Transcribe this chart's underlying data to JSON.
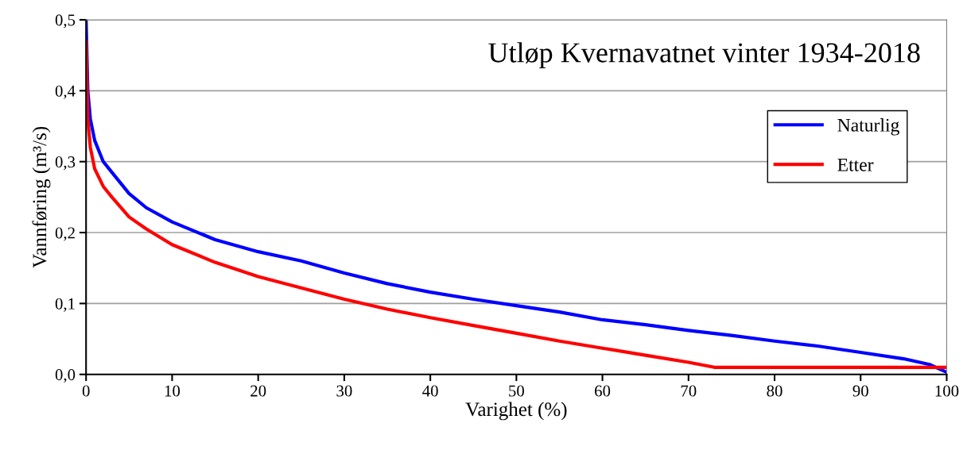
{
  "chart_data": {
    "type": "line",
    "title": "Utløp Kvernavatnet vinter 1934-2018",
    "xlabel": "Varighet (%)",
    "ylabel": "Vannføring (m³/s)",
    "series": [
      {
        "name": "Naturlig",
        "color": "#0000ff",
        "x": [
          0,
          0.2,
          0.5,
          1,
          2,
          3,
          5,
          7,
          10,
          15,
          20,
          25,
          30,
          35,
          40,
          45,
          50,
          55,
          60,
          65,
          70,
          75,
          80,
          85,
          90,
          95,
          98,
          100
        ],
        "values": [
          0.5,
          0.4,
          0.36,
          0.33,
          0.3,
          0.285,
          0.255,
          0.235,
          0.215,
          0.19,
          0.173,
          0.16,
          0.143,
          0.128,
          0.116,
          0.106,
          0.097,
          0.088,
          0.077,
          0.07,
          0.062,
          0.055,
          0.047,
          0.04,
          0.031,
          0.022,
          0.014,
          0.003
        ]
      },
      {
        "name": "Etter",
        "color": "#ff0000",
        "x": [
          0,
          0.2,
          0.5,
          1,
          2,
          3,
          5,
          7,
          10,
          15,
          20,
          25,
          30,
          35,
          40,
          45,
          50,
          55,
          60,
          65,
          70,
          73,
          80,
          90,
          100
        ],
        "values": [
          0.47,
          0.36,
          0.32,
          0.29,
          0.265,
          0.25,
          0.222,
          0.205,
          0.183,
          0.158,
          0.138,
          0.122,
          0.106,
          0.092,
          0.08,
          0.069,
          0.058,
          0.047,
          0.037,
          0.027,
          0.017,
          0.01,
          0.01,
          0.01,
          0.01
        ]
      }
    ],
    "xlim": [
      0,
      100
    ],
    "xticks": [
      0,
      10,
      20,
      30,
      40,
      50,
      60,
      70,
      80,
      90,
      100
    ],
    "ylim": [
      0,
      0.5
    ],
    "yticks": [
      {
        "value": 0,
        "label": "0,0"
      },
      {
        "value": 0.1,
        "label": "0,1"
      },
      {
        "value": 0.2,
        "label": "0,2"
      },
      {
        "value": 0.3,
        "label": "0,3"
      },
      {
        "value": 0.4,
        "label": "0,4"
      },
      {
        "value": 0.5,
        "label": "0,5"
      }
    ],
    "grid": "y",
    "legend": "top right",
    "marker": "none",
    "line_style": "solid"
  }
}
